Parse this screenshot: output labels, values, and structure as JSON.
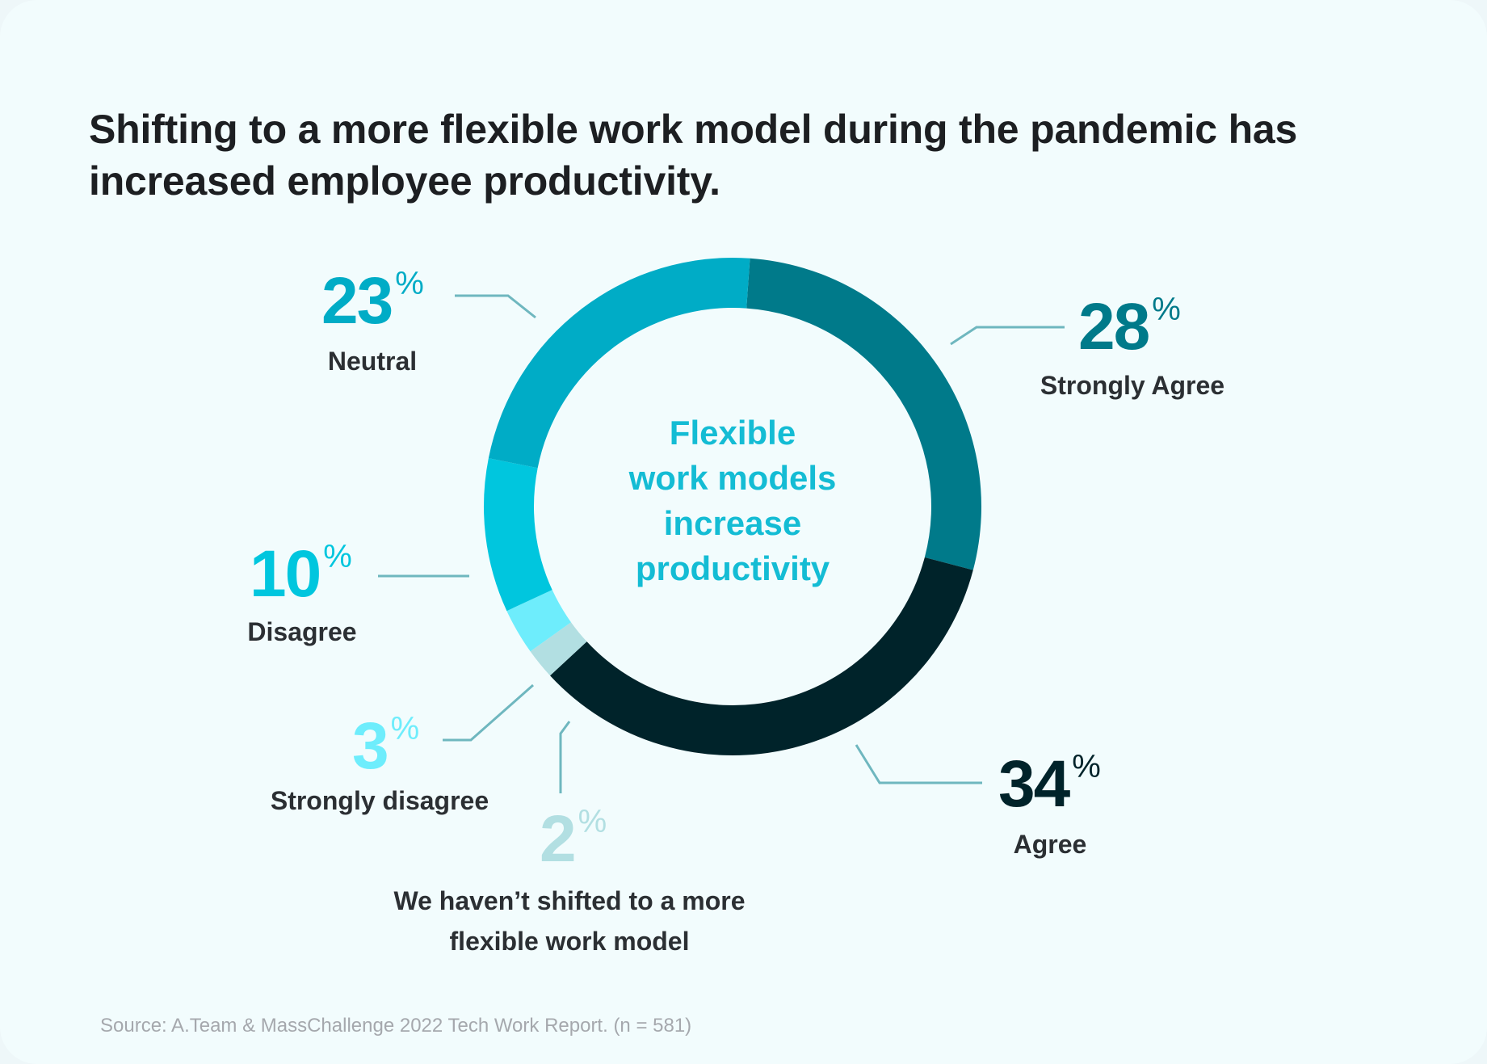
{
  "title": "Shifting to a more flexible work model during the pandemic has increased employee productivity.",
  "center_lines": [
    "Flexible",
    "work models",
    "increase",
    "productivity"
  ],
  "center_color": "#14bcd4",
  "source": "Source: A.Team & MassChallenge 2022 Tech Work Report. (n = 581)",
  "percent_sign": "%",
  "chart_data": {
    "type": "pie",
    "style": "donut",
    "title": "Shifting to a more flexible work model during the pandemic has increased employee productivity.",
    "start_direction": "top",
    "direction": "clockwise",
    "slices": [
      {
        "label": "Strongly Agree",
        "value": 28,
        "color": "#007a8a",
        "value_text": "28"
      },
      {
        "label": "Agree",
        "value": 34,
        "color": "#00232a",
        "value_text": "34"
      },
      {
        "label": "We haven’t shifted to a more flexible work model",
        "value": 2,
        "color": "#b2dfe2",
        "value_text": "2",
        "label_lines": [
          "We haven’t shifted to a more",
          "flexible work model"
        ]
      },
      {
        "label": "Strongly disagree",
        "value": 3,
        "color": "#6eedfc",
        "value_text": "3"
      },
      {
        "label": "Disagree",
        "value": 10,
        "color": "#00c6de",
        "value_text": "10"
      },
      {
        "label": "Neutral",
        "value": 23,
        "color": "#00acc6",
        "value_text": "23"
      }
    ]
  }
}
